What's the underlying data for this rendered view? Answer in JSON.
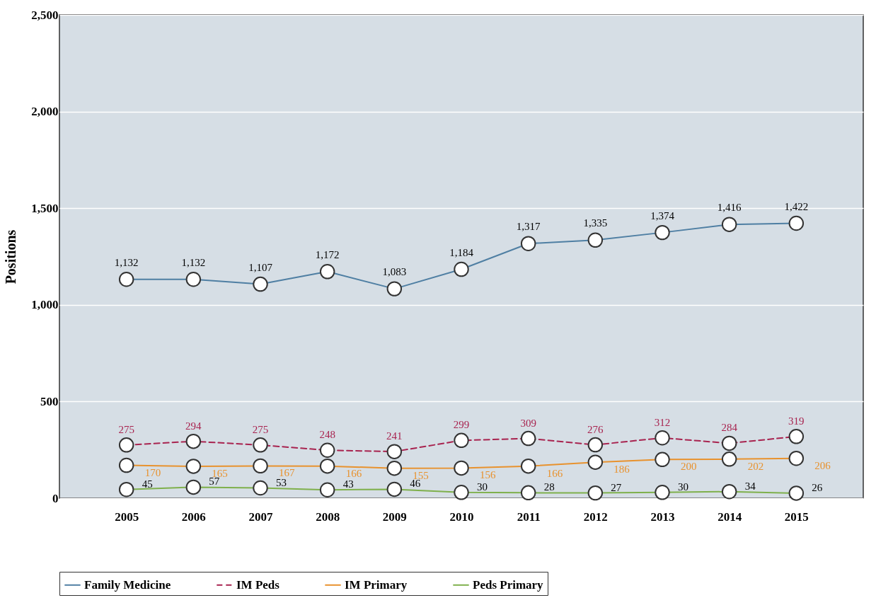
{
  "chart_data": {
    "type": "line",
    "ylabel": "Positions",
    "categories": [
      "2005",
      "2006",
      "2007",
      "2008",
      "2009",
      "2010",
      "2011",
      "2012",
      "2013",
      "2014",
      "2015"
    ],
    "series": [
      {
        "name": "Family Medicine",
        "color": "#4f7fa3",
        "line_style": "solid",
        "values": [
          1132,
          1132,
          1107,
          1172,
          1083,
          1184,
          1317,
          1335,
          1374,
          1416,
          1422
        ],
        "value_labels": [
          "1,132",
          "1,132",
          "1,107",
          "1,172",
          "1,083",
          "1,184",
          "1,317",
          "1,335",
          "1,374",
          "1,416",
          "1,422"
        ]
      },
      {
        "name": "IM Peds",
        "color": "#a8234f",
        "line_style": "dashed",
        "values": [
          275,
          294,
          275,
          248,
          241,
          299,
          309,
          276,
          312,
          284,
          319
        ]
      },
      {
        "name": "IM Primary",
        "color": "#e8922e",
        "line_style": "solid",
        "values": [
          170,
          165,
          167,
          166,
          155,
          156,
          166,
          186,
          200,
          202,
          206
        ]
      },
      {
        "name": "Peds Primary",
        "color": "#7fb04c",
        "line_style": "solid",
        "values": [
          45,
          57,
          53,
          43,
          46,
          30,
          28,
          27,
          30,
          34,
          26
        ]
      }
    ],
    "ylim": [
      0,
      2500
    ],
    "yticks": [
      0,
      500,
      {
        "value": 1000,
        "label": "1,000"
      },
      {
        "value": 1500,
        "label": "1,500"
      },
      {
        "value": 2000,
        "label": "2,000"
      },
      {
        "value": 2500,
        "label": "2,500"
      }
    ],
    "grid": "y",
    "legend": "bottom",
    "marker": "circle",
    "data_labels": true
  }
}
